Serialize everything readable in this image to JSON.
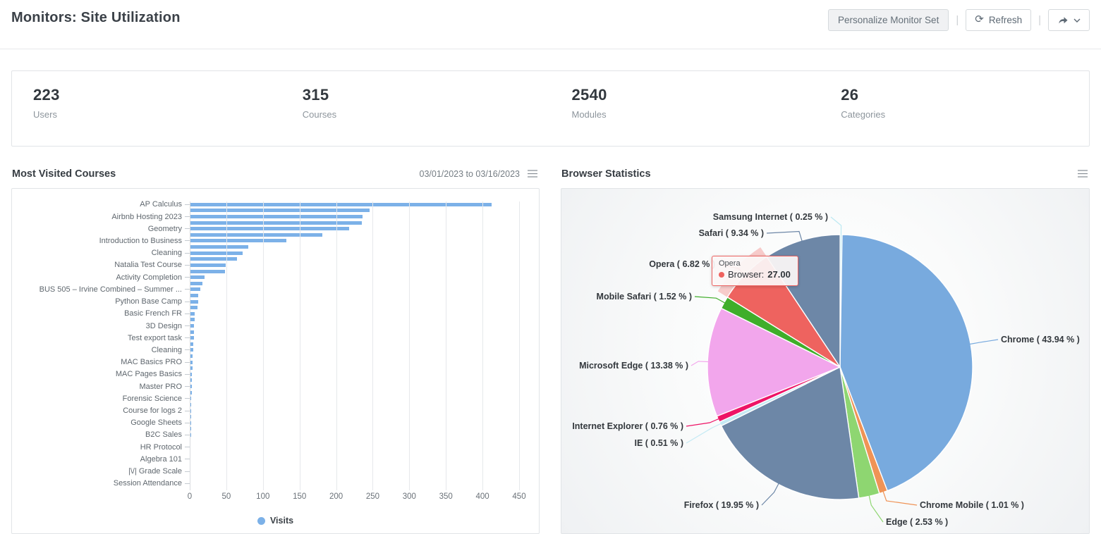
{
  "header": {
    "title": "Monitors: Site Utilization",
    "personalize_label": "Personalize Monitor Set",
    "refresh_label": "Refresh"
  },
  "stats": [
    {
      "value": "223",
      "label": "Users"
    },
    {
      "value": "315",
      "label": "Courses"
    },
    {
      "value": "2540",
      "label": "Modules"
    },
    {
      "value": "26",
      "label": "Categories"
    }
  ],
  "bar_panel": {
    "title": "Most Visited Courses",
    "date_range": "03/01/2023 to 03/16/2023",
    "legend_label": "Visits"
  },
  "pie_panel": {
    "title": "Browser Statistics",
    "tooltip": {
      "title": "Opera",
      "series_label": "Browser:",
      "value": "27.00"
    }
  },
  "chart_data": [
    {
      "type": "bar",
      "orientation": "horizontal",
      "title": "Most Visited Courses",
      "series_name": "Visits",
      "bar_color": "#7cb1e8",
      "xlim": [
        0,
        450
      ],
      "x_ticks": [
        0,
        50,
        100,
        150,
        200,
        250,
        300,
        350,
        400,
        450
      ],
      "grid": true,
      "categories": [
        "AP Calculus",
        "",
        "Airbnb Hosting 2023",
        "",
        "Geometry",
        "",
        "Introduction to Business",
        "",
        "Cleaning",
        "",
        "Natalia Test Course",
        "",
        "Activity Completion",
        "",
        "BUS 505 – Irvine Combined – Summer ...",
        "",
        "Python Base Camp",
        "",
        "Basic French FR",
        "",
        "3D Design",
        "",
        "Test export task",
        "",
        "Cleaning",
        "",
        "MAC Basics PRO",
        "",
        "MAC Pages Basics",
        "",
        "Master PRO",
        "",
        "Forensic Science",
        "",
        "Course for logs 2",
        "",
        "Google Sheets",
        "",
        "B2C Sales",
        "",
        "HR Protocol",
        "",
        "Algebra 101",
        "",
        "|\\/| Grade Scale",
        "",
        "Session Attendance"
      ],
      "values": [
        412,
        246,
        236,
        235,
        218,
        181,
        132,
        80,
        72,
        65,
        49,
        48,
        20,
        17,
        14,
        12,
        12,
        11,
        7,
        7,
        6,
        6,
        6,
        5,
        5,
        4,
        4,
        4,
        3,
        3,
        3,
        3,
        2,
        2,
        2,
        2,
        2,
        2,
        2,
        1,
        1,
        1,
        1,
        1,
        1,
        1,
        1
      ]
    },
    {
      "type": "pie",
      "title": "Browser Statistics",
      "direction": "clockwise",
      "start_angle_deg": 0,
      "hover": {
        "slice": "Opera",
        "tooltip_series": "Browser",
        "tooltip_value": "27.00"
      },
      "slices": [
        {
          "label": "Samsung Internet",
          "pct": 0.25,
          "color": "#bce9f2"
        },
        {
          "label": "Chrome",
          "pct": 43.94,
          "color": "#78aade"
        },
        {
          "label": "Chrome Mobile",
          "pct": 1.01,
          "color": "#ef9356"
        },
        {
          "label": "Edge",
          "pct": 2.53,
          "color": "#8ed671"
        },
        {
          "label": "Firefox",
          "pct": 19.95,
          "color": "#6d87a7"
        },
        {
          "label": "IE",
          "pct": 0.51,
          "color": "#c5eaf4"
        },
        {
          "label": "Internet Explorer",
          "pct": 0.76,
          "color": "#ee1466"
        },
        {
          "label": "Microsoft Edge",
          "pct": 13.38,
          "color": "#f2a6ec"
        },
        {
          "label": "Mobile Safari",
          "pct": 1.52,
          "color": "#3fae2a"
        },
        {
          "label": "Opera",
          "pct": 6.82,
          "color": "#ee635f",
          "hovered": true
        },
        {
          "label": "Safari",
          "pct": 9.34,
          "color": "#6d87a7"
        }
      ]
    }
  ]
}
